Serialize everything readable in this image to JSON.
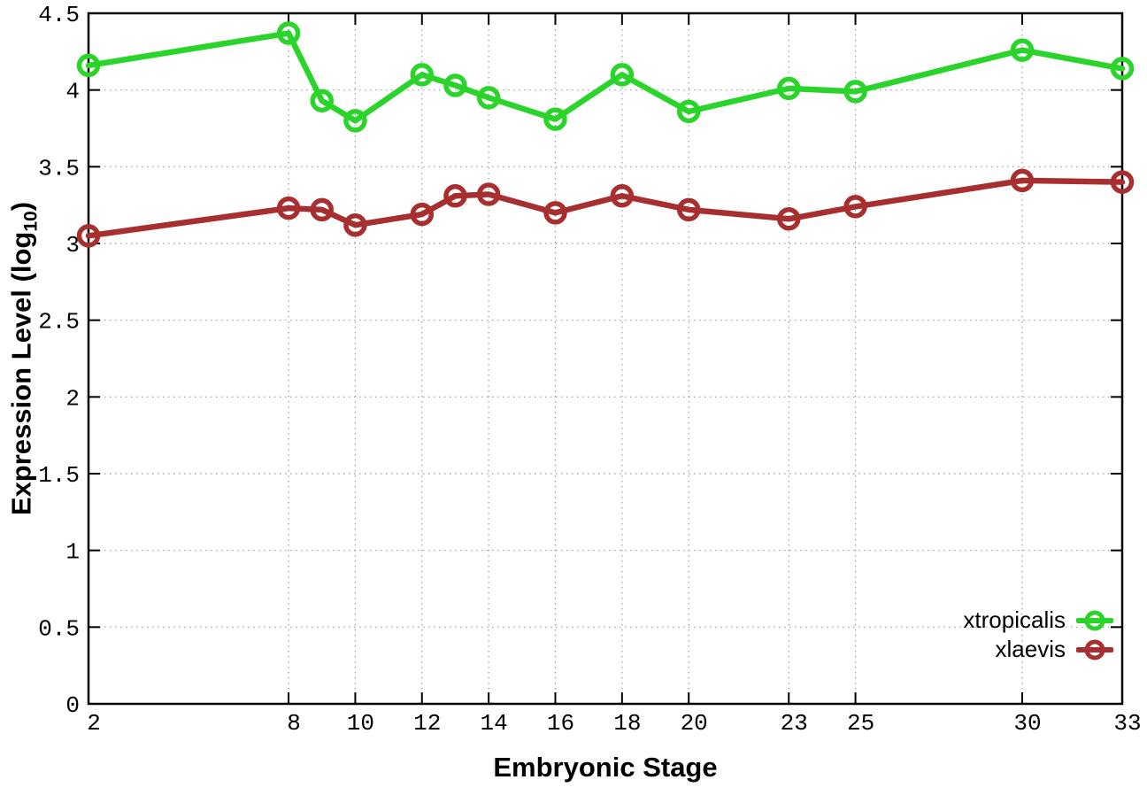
{
  "chart_data": {
    "type": "line",
    "title": "",
    "xlabel": "Embryonic Stage",
    "ylabel": "Expression Level (log10)",
    "ylabel_parts": {
      "pre": "Expression Level (log",
      "sub": "10",
      "post": ")"
    },
    "x": [
      2,
      8,
      9,
      10,
      12,
      13,
      14,
      16,
      18,
      20,
      23,
      25,
      30,
      33
    ],
    "xticks": [
      2,
      8,
      10,
      12,
      14,
      16,
      18,
      20,
      23,
      25,
      30,
      33
    ],
    "yticks": [
      0,
      0.5,
      1,
      1.5,
      2,
      2.5,
      3,
      3.5,
      4,
      4.5
    ],
    "xlim": [
      2,
      33
    ],
    "ylim": [
      0,
      4.5
    ],
    "grid": true,
    "legend_position": "inside-right",
    "series": [
      {
        "name": "xtropicalis",
        "color": "#2bd42b",
        "values": [
          4.16,
          4.37,
          3.93,
          3.8,
          4.1,
          4.03,
          3.95,
          3.81,
          4.1,
          3.86,
          4.01,
          3.99,
          4.26,
          4.14
        ]
      },
      {
        "name": "xlaevis",
        "color": "#a72f2f",
        "values": [
          3.05,
          3.23,
          3.22,
          3.12,
          3.19,
          3.31,
          3.32,
          3.2,
          3.31,
          3.22,
          3.16,
          3.24,
          3.41,
          3.4
        ]
      }
    ],
    "axis_color": "#000000",
    "grid_color": "#9b9b9b"
  }
}
